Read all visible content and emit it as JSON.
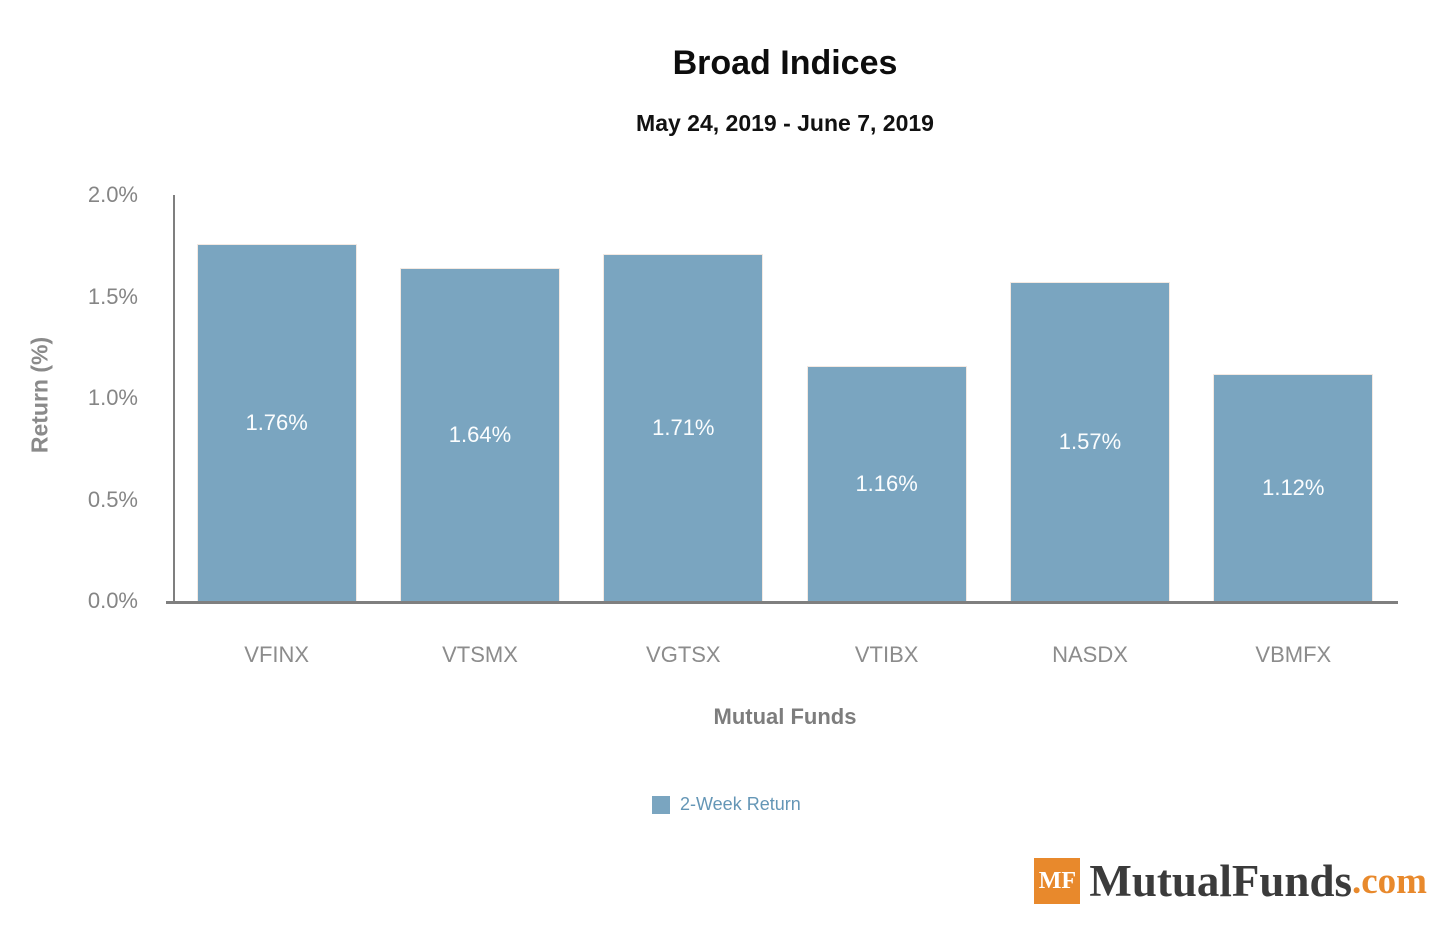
{
  "chart_data": {
    "type": "bar",
    "title": "Broad Indices",
    "subtitle": "May 24, 2019 - June 7, 2019",
    "categories": [
      "VFINX",
      "VTSMX",
      "VGTSX",
      "VTIBX",
      "NASDX",
      "VBMFX"
    ],
    "series": [
      {
        "name": "2-Week Return",
        "values": [
          1.76,
          1.64,
          1.71,
          1.16,
          1.57,
          1.12
        ]
      }
    ],
    "value_labels": [
      "1.76%",
      "1.64%",
      "1.71%",
      "1.16%",
      "1.57%",
      "1.12%"
    ],
    "xlabel": "Mutual Funds",
    "ylabel": "Return (%)",
    "ylim": [
      0,
      2
    ],
    "yticks": [
      "0.0%",
      "0.5%",
      "1.0%",
      "1.5%",
      "2.0%"
    ],
    "grid": false,
    "legend_position": "bottom",
    "bar_color": "#7AA5C0"
  },
  "legend": {
    "label": "2-Week Return",
    "swatch_color": "#7AA5C0"
  },
  "branding": {
    "logo_badge": "MF",
    "logo_text": "MutualFunds",
    "logo_suffix": ".com",
    "badge_color": "#E8892C",
    "suffix_color": "#E8892C"
  }
}
